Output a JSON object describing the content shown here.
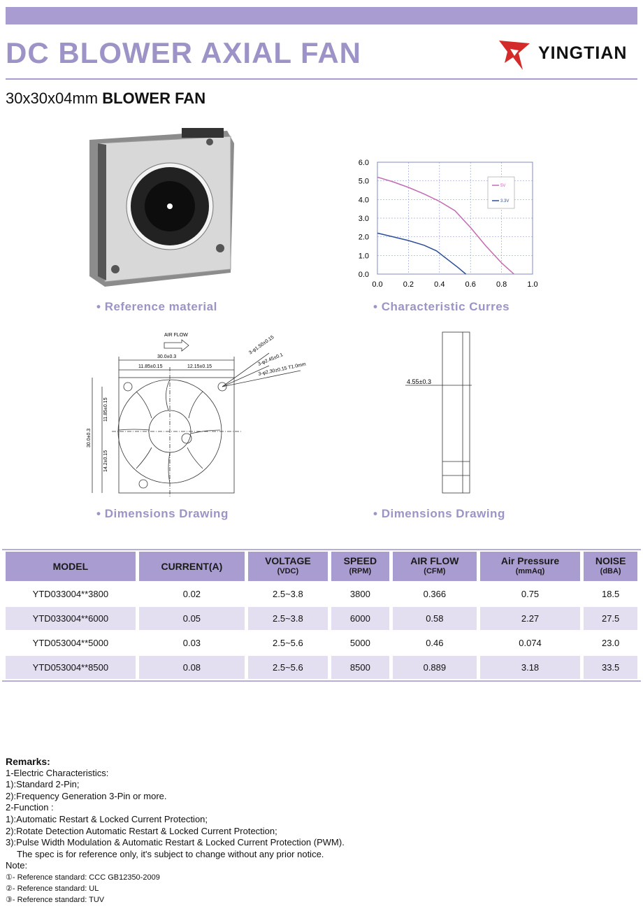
{
  "header": {
    "title": "DC BLOWER AXIAL FAN",
    "brand": "YINGTIAN",
    "size": "30x30x04mm",
    "product": "BLOWER FAN"
  },
  "figures": {
    "photo_caption": "Reference material",
    "chart_caption": "Characteristic Curres",
    "front_drawing": {
      "caption": "Dimensions Drawing",
      "airflow": "AIR FLOW",
      "width": "30.0±0.3",
      "left_half": "11.85±0.15",
      "right_half": "12.15±0.15",
      "hole1": "3-φ1.50±0.15",
      "hole2": "3-φ2.45±0.1",
      "hole3": "3-φ2.30±0.15 T1.0mm",
      "height": "30.0±0.3",
      "upper_half": "11.85±0.15",
      "lower_half": "14.2±0.15"
    },
    "side_drawing": {
      "caption": "Dimensions Drawing",
      "thickness": "4.55±0.3"
    }
  },
  "chart_data": {
    "type": "line",
    "grid": true,
    "xlim": [
      0,
      1
    ],
    "ylim": [
      0,
      6
    ],
    "xticks": [
      {
        "value": 0,
        "label": "0.0"
      },
      {
        "value": 0.2,
        "label": "0.2"
      },
      {
        "value": 0.4,
        "label": "0.4"
      },
      {
        "value": 0.6,
        "label": "0.6"
      },
      {
        "value": 0.8,
        "label": "0.8"
      },
      {
        "value": 1,
        "label": "1.0"
      }
    ],
    "yticks": [
      {
        "value": 0,
        "label": "0.0"
      },
      {
        "value": 1,
        "label": "1.0"
      },
      {
        "value": 2,
        "label": "2.0"
      },
      {
        "value": 3,
        "label": "3.0"
      },
      {
        "value": 4,
        "label": "4.0"
      },
      {
        "value": 5,
        "label": "5.0"
      },
      {
        "value": 6,
        "label": "6.0"
      }
    ],
    "series": [
      {
        "name": "5V",
        "color": "#c46ab3",
        "x": [
          0,
          0.1,
          0.2,
          0.3,
          0.4,
          0.5,
          0.6,
          0.7,
          0.8,
          0.88
        ],
        "values": [
          5.2,
          4.95,
          4.65,
          4.3,
          3.9,
          3.4,
          2.5,
          1.5,
          0.6,
          0
        ]
      },
      {
        "name": "3.3V",
        "color": "#2e4d97",
        "x": [
          0,
          0.1,
          0.2,
          0.3,
          0.38,
          0.45,
          0.52,
          0.57
        ],
        "values": [
          2.2,
          2.0,
          1.8,
          1.55,
          1.25,
          0.8,
          0.35,
          0
        ]
      }
    ]
  },
  "table": {
    "columns": [
      {
        "name": "MODEL"
      },
      {
        "name": "CURRENT(A)"
      },
      {
        "name": "VOLTAGE",
        "unit": "(VDC)"
      },
      {
        "name": "SPEED",
        "unit": "(RPM)"
      },
      {
        "name": "AIR FLOW",
        "unit": "(CFM)"
      },
      {
        "name": "Air Pressure",
        "unit": "(mmAq)"
      },
      {
        "name": "NOISE",
        "unit": "(dBA)"
      }
    ],
    "rows": [
      [
        "YTD033004**3800",
        "0.02",
        "2.5~3.8",
        "3800",
        "0.366",
        "0.75",
        "18.5"
      ],
      [
        "YTD033004**6000",
        "0.05",
        "2.5~3.8",
        "6000",
        "0.58",
        "2.27",
        "27.5"
      ],
      [
        "YTD053004**5000",
        "0.03",
        "2.5~5.6",
        "5000",
        "0.46",
        "0.074",
        "23.0"
      ],
      [
        "YTD053004**8500",
        "0.08",
        "2.5~5.6",
        "8500",
        "0.889",
        "3.18",
        "33.5"
      ]
    ]
  },
  "remarks": {
    "title": "Remarks:",
    "lines": [
      "1-Electric Characteristics:",
      "1):Standard 2-Pin;",
      "2):Frequency Generation 3-Pin or more.",
      "2-Function :",
      "1):Automatic Restart & Locked Current Protection;",
      "2):Rotate Detection Automatic Restart & Locked Current Protection;",
      "3):Pulse Width Modulation & Automatic Restart & Locked Current Protection (PWM)."
    ],
    "disclaimer": "The spec is for reference only, it's subject to change without any prior notice.",
    "note_title": "Note:",
    "notes": [
      "①- Reference standard: CCC GB12350-2009",
      "②- Reference standard: UL",
      "③- Reference standard: TUV"
    ]
  }
}
